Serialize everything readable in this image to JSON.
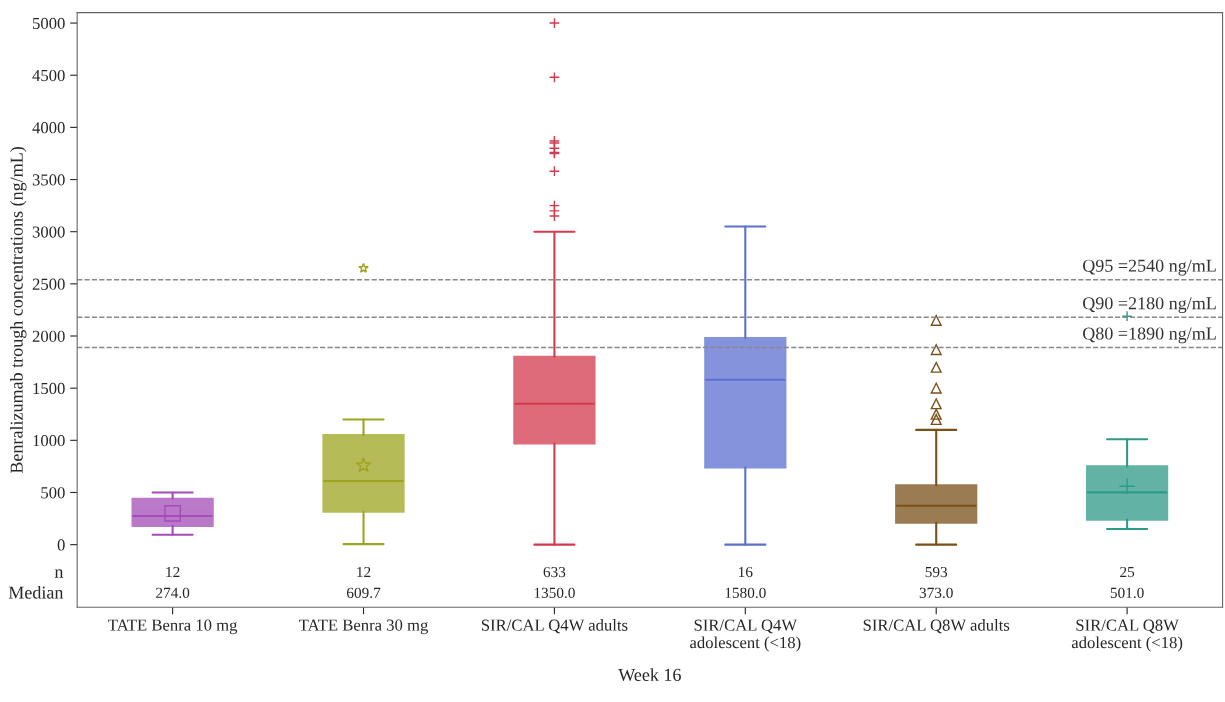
{
  "chart_data": {
    "type": "box",
    "categories": [
      "TATE Benra 10 mg",
      "TATE Benra 30 mg",
      "SIR/CAL Q4W adults",
      "SIR/CAL Q4W\nadolescent (<18)",
      "SIR/CAL Q8W adults",
      "SIR/CAL Q8W\nadolescent (<18)"
    ],
    "xlabel": "Week 16",
    "ylabel": "Benralizumab trough concentrations (ng/mL)",
    "ylim": [
      -600,
      5100
    ],
    "yticks": [
      0,
      500,
      1000,
      1500,
      2000,
      2500,
      3000,
      3500,
      4000,
      4500,
      5000
    ],
    "grid": false,
    "legend": false,
    "series": [
      {
        "color": "#a44cb8",
        "marker": "square",
        "boxes": [
          {
            "low": 95,
            "q1": 180,
            "median": 274,
            "q3": 440,
            "high": 500,
            "mean": 300
          },
          null,
          null,
          null,
          null,
          null
        ]
      },
      {
        "color": "#9ca51f",
        "marker": "star",
        "boxes": [
          null,
          {
            "low": 5,
            "q1": 315,
            "median": 609.7,
            "q3": 1050,
            "high": 1200,
            "mean": 760,
            "outliers": [
              2650
            ]
          },
          null,
          null,
          null,
          null
        ]
      },
      {
        "color": "#d23a4e",
        "marker": "cross",
        "boxes": [
          null,
          null,
          {
            "low": 0,
            "q1": 970,
            "median": 1350,
            "q3": 1800,
            "high": 3000,
            "outliers": [
              3150,
              3200,
              3250,
              3580,
              3750,
              3760,
              3800,
              3850,
              3870,
              4480,
              5000
            ]
          },
          null,
          null,
          null
        ]
      },
      {
        "color": "#5b6fcf",
        "marker": "circle",
        "boxes": [
          null,
          null,
          null,
          {
            "low": 0,
            "q1": 740,
            "median": 1580,
            "q3": 1980,
            "high": 3050
          },
          null,
          null
        ]
      },
      {
        "color": "#7a5019",
        "marker": "triangle",
        "boxes": [
          null,
          null,
          null,
          null,
          {
            "low": 0,
            "q1": 210,
            "median": 373,
            "q3": 570,
            "high": 1100,
            "outliers": [
              1200,
              1250,
              1350,
              1500,
              1700,
              1870,
              2150
            ]
          },
          null
        ]
      },
      {
        "color": "#2e9a88",
        "marker": "cross",
        "boxes": [
          null,
          null,
          null,
          null,
          null,
          {
            "low": 150,
            "q1": 240,
            "median": 501,
            "q3": 750,
            "high": 1010,
            "mean": 560,
            "outliers": [
              2190
            ]
          }
        ]
      }
    ],
    "ref_lines": [
      {
        "axis": "y",
        "value": 2540,
        "label": "Q95 =2540 ng/mL",
        "color": "#888888",
        "line_style": "dashed"
      },
      {
        "axis": "y",
        "value": 2180,
        "label": "Q90 =2180 ng/mL",
        "color": "#888888",
        "line_style": "dashed"
      },
      {
        "axis": "y",
        "value": 1890,
        "label": "Q80 =1890 ng/mL",
        "color": "#888888",
        "line_style": "dashed"
      }
    ],
    "annotations": [
      "n",
      "Median",
      "12",
      "12",
      "633",
      "16",
      "593",
      "25",
      "274.0",
      "609.7",
      "1350.0",
      "1580.0",
      "373.0",
      "501.0"
    ]
  }
}
